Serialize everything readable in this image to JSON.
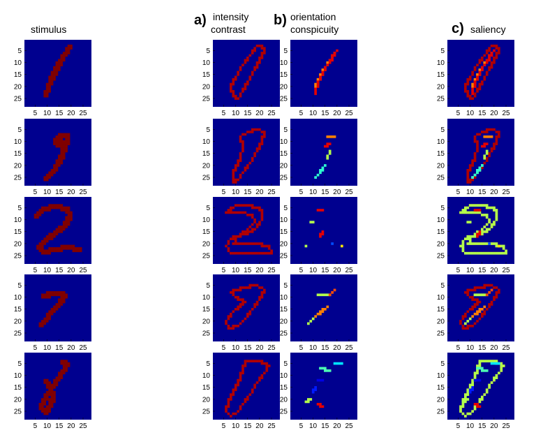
{
  "column_titles": [
    {
      "tag": "",
      "lines": [
        "stimulus"
      ]
    },
    {
      "tag": "a)",
      "lines": [
        "intensity",
        "contrast"
      ]
    },
    {
      "tag": "b)",
      "lines": [
        "orientation",
        "conspicuity"
      ]
    },
    {
      "tag": "c)",
      "lines": [
        "saliency"
      ]
    }
  ],
  "colors": {
    "background": "#00008f",
    "colormap": [
      "#00008f",
      "#0000ff",
      "#00ffff",
      "#80ff80",
      "#ffff00",
      "#ff8000",
      "#ff0000",
      "#800000"
    ]
  },
  "chart_data": {
    "type": "heatmap",
    "grid_size": 28,
    "colormap": "jet",
    "xticks": [
      5,
      10,
      15,
      20,
      25
    ],
    "yticks": [
      5,
      10,
      15,
      20,
      25
    ],
    "columns": [
      "stimulus",
      "intensity contrast",
      "orientation conspicuity",
      "saliency"
    ],
    "rows": [
      {
        "stimulus": [
          [
            20,
            4
          ],
          [
            18,
            7
          ],
          [
            16,
            10
          ],
          [
            14,
            14
          ],
          [
            12,
            18
          ],
          [
            11,
            21
          ],
          [
            10,
            24
          ]
        ],
        "intensity": [
          [
            19,
            3
          ],
          [
            21,
            3
          ],
          [
            22,
            5
          ],
          [
            20,
            9
          ],
          [
            18,
            13
          ],
          [
            15,
            18
          ],
          [
            13,
            22
          ],
          [
            11,
            25
          ],
          [
            9,
            24
          ],
          [
            8,
            20
          ],
          [
            10,
            16
          ],
          [
            13,
            11
          ],
          [
            16,
            7
          ],
          [
            19,
            3
          ]
        ],
        "orientation": [
          {
            "pts": [
              [
                19,
                6
              ],
              [
                17,
                9
              ],
              [
                15,
                12
              ],
              [
                13,
                16
              ],
              [
                11,
                20
              ]
            ],
            "v": 0.75
          },
          {
            "pts": [
              [
                20,
                5
              ],
              [
                16,
                11
              ],
              [
                12,
                18
              ],
              [
                11,
                23
              ]
            ],
            "v": 0.9
          }
        ],
        "saliency_cool": []
      },
      {
        "stimulus": [
          [
            15,
            9
          ],
          [
            17,
            8
          ],
          [
            19,
            8
          ],
          [
            19,
            11
          ],
          [
            16,
            12
          ],
          [
            14,
            11
          ],
          [
            15,
            9
          ],
          [
            18,
            12
          ],
          [
            17,
            16
          ],
          [
            15,
            20
          ],
          [
            13,
            23
          ],
          [
            10,
            26
          ]
        ],
        "intensity": [
          [
            12,
            8
          ],
          [
            15,
            6
          ],
          [
            19,
            5
          ],
          [
            22,
            6
          ],
          [
            21,
            10
          ],
          [
            19,
            14
          ],
          [
            16,
            19
          ],
          [
            13,
            23
          ],
          [
            11,
            26
          ],
          [
            9,
            27
          ],
          [
            9,
            23
          ],
          [
            12,
            17
          ],
          [
            13,
            12
          ],
          [
            12,
            8
          ]
        ],
        "orientation": [
          {
            "pts": [
              [
                16,
                8
              ],
              [
                19,
                8
              ]
            ],
            "v": 0.75
          },
          {
            "pts": [
              [
                15,
                12
              ],
              [
                17,
                11
              ]
            ],
            "v": 0.9
          },
          {
            "pts": [
              [
                17,
                14
              ],
              [
                16,
                17
              ]
            ],
            "v": 0.55
          },
          {
            "pts": [
              [
                15,
                20
              ],
              [
                12,
                24
              ],
              [
                11,
                25
              ]
            ],
            "v": 0.42
          }
        ],
        "saliency_cool": [
          [
            [
              15,
              20
            ],
            [
              12,
              24
            ],
            [
              11,
              25
            ]
          ]
        ]
      },
      {
        "stimulus": [
          [
            6,
            9
          ],
          [
            9,
            6
          ],
          [
            14,
            5
          ],
          [
            19,
            6
          ],
          [
            20,
            9
          ],
          [
            18,
            13
          ],
          [
            14,
            16
          ],
          [
            10,
            19
          ],
          [
            7,
            22
          ],
          [
            9,
            24
          ],
          [
            14,
            23
          ],
          [
            19,
            22
          ],
          [
            24,
            23
          ]
        ],
        "intensity": [
          [
            6,
            7
          ],
          [
            10,
            4
          ],
          [
            16,
            4
          ],
          [
            21,
            6
          ],
          [
            21,
            10
          ],
          [
            18,
            14
          ],
          [
            14,
            16
          ],
          [
            10,
            17
          ],
          [
            8,
            18
          ],
          [
            6,
            21
          ],
          [
            8,
            24
          ],
          [
            14,
            24
          ],
          [
            20,
            24
          ],
          [
            25,
            24
          ],
          [
            24,
            21
          ],
          [
            18,
            20
          ],
          [
            12,
            20
          ],
          [
            9,
            20
          ],
          [
            11,
            17
          ],
          [
            15,
            14
          ],
          [
            18,
            11
          ],
          [
            17,
            8
          ],
          [
            12,
            7
          ],
          [
            6,
            7
          ]
        ],
        "orientation": [
          {
            "pts": [
              [
                12,
                6
              ],
              [
                14,
                6
              ]
            ],
            "v": 0.9
          },
          {
            "pts": [
              [
                14,
                15
              ],
              [
                13,
                17
              ]
            ],
            "v": 0.9
          },
          {
            "pts": [
              [
                9,
                11
              ],
              [
                10,
                11
              ]
            ],
            "v": 0.55
          },
          {
            "pts": [
              [
                7,
                21
              ]
            ],
            "v": 0.55
          },
          {
            "pts": [
              [
                22,
                21
              ]
            ],
            "v": 0.65
          },
          {
            "pts": [
              [
                18,
                20
              ]
            ],
            "v": 0.2
          }
        ],
        "saliency_cool": [
          [
            [
              6,
              7
            ],
            [
              10,
              4
            ],
            [
              16,
              4
            ],
            [
              21,
              6
            ],
            [
              21,
              10
            ],
            [
              18,
              14
            ],
            [
              14,
              16
            ],
            [
              10,
              17
            ],
            [
              8,
              18
            ],
            [
              6,
              21
            ],
            [
              8,
              24
            ],
            [
              14,
              24
            ],
            [
              20,
              24
            ],
            [
              25,
              24
            ],
            [
              24,
              21
            ],
            [
              18,
              20
            ],
            [
              12,
              20
            ],
            [
              9,
              20
            ],
            [
              11,
              17
            ],
            [
              15,
              14
            ],
            [
              18,
              11
            ],
            [
              17,
              8
            ],
            [
              12,
              7
            ],
            [
              6,
              7
            ]
          ]
        ]
      },
      {
        "stimulus": [
          [
            9,
            10
          ],
          [
            13,
            9
          ],
          [
            17,
            9
          ],
          [
            18,
            10
          ],
          [
            15,
            14
          ],
          [
            12,
            17
          ],
          [
            10,
            20
          ],
          [
            8,
            22
          ]
        ],
        "intensity": [
          [
            8,
            8
          ],
          [
            13,
            6
          ],
          [
            19,
            5
          ],
          [
            22,
            7
          ],
          [
            20,
            11
          ],
          [
            17,
            15
          ],
          [
            14,
            19
          ],
          [
            11,
            22
          ],
          [
            7,
            23
          ],
          [
            6,
            20
          ],
          [
            9,
            16
          ],
          [
            14,
            12
          ],
          [
            10,
            10
          ],
          [
            8,
            8
          ]
        ],
        "orientation": [
          {
            "pts": [
              [
                12,
                9
              ],
              [
                17,
                9
              ]
            ],
            "v": 0.55
          },
          {
            "pts": [
              [
                17,
                9
              ],
              [
                19,
                7
              ]
            ],
            "v": 0.8
          },
          {
            "pts": [
              [
                16,
                14
              ],
              [
                11,
                18
              ]
            ],
            "v": 0.75
          },
          {
            "pts": [
              [
                10,
                19
              ],
              [
                8,
                21
              ]
            ],
            "v": 0.55
          }
        ],
        "saliency_cool": [
          [
            [
              12,
              9
            ],
            [
              16,
              9
            ]
          ]
        ]
      },
      {
        "stimulus": [
          [
            17,
            5
          ],
          [
            19,
            6
          ],
          [
            17,
            9
          ],
          [
            15,
            12
          ],
          [
            13,
            15
          ],
          [
            11,
            18
          ],
          [
            9,
            21
          ],
          [
            8,
            24
          ],
          [
            10,
            26
          ],
          [
            12,
            23
          ],
          [
            13,
            19
          ],
          [
            12,
            16
          ],
          [
            10,
            13
          ]
        ],
        "intensity": [
          [
            14,
            4
          ],
          [
            20,
            4
          ],
          [
            24,
            6
          ],
          [
            22,
            9
          ],
          [
            19,
            13
          ],
          [
            16,
            18
          ],
          [
            13,
            22
          ],
          [
            11,
            25
          ],
          [
            8,
            27
          ],
          [
            6,
            25
          ],
          [
            7,
            21
          ],
          [
            9,
            17
          ],
          [
            11,
            13
          ],
          [
            13,
            8
          ],
          [
            14,
            4
          ]
        ],
        "orientation": [
          {
            "pts": [
              [
                13,
                7
              ],
              [
                17,
                8
              ]
            ],
            "v": 0.45
          },
          {
            "pts": [
              [
                19,
                5
              ],
              [
                22,
                5
              ]
            ],
            "v": 0.35
          },
          {
            "pts": [
              [
                12,
                12
              ],
              [
                14,
                12
              ]
            ],
            "v": 0.1
          },
          {
            "pts": [
              [
                11,
                15
              ],
              [
                10,
                17
              ]
            ],
            "v": 0.15
          },
          {
            "pts": [
              [
                9,
                20
              ],
              [
                7,
                21
              ]
            ],
            "v": 0.55
          },
          {
            "pts": [
              [
                12,
                22
              ],
              [
                14,
                23
              ]
            ],
            "v": 0.9
          }
        ],
        "saliency_cool": [
          [
            [
              14,
              4
            ],
            [
              20,
              4
            ],
            [
              24,
              6
            ],
            [
              22,
              9
            ],
            [
              19,
              13
            ],
            [
              16,
              18
            ],
            [
              13,
              22
            ],
            [
              11,
              25
            ],
            [
              8,
              27
            ],
            [
              6,
              25
            ],
            [
              7,
              21
            ],
            [
              9,
              17
            ],
            [
              11,
              13
            ],
            [
              13,
              8
            ],
            [
              14,
              4
            ]
          ]
        ]
      }
    ]
  }
}
